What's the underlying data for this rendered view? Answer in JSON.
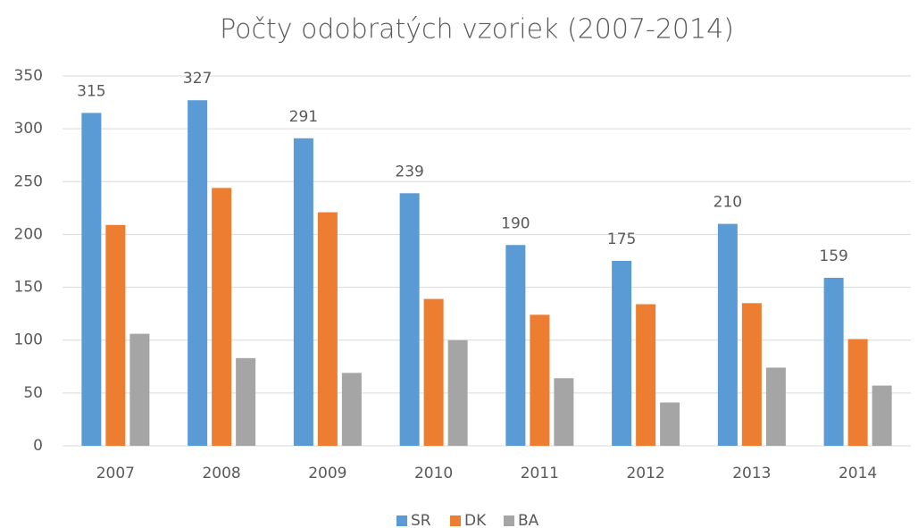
{
  "chart_data": {
    "type": "bar",
    "title": "Počty odobratých vzoriek (2007-2014)",
    "categories": [
      "2007",
      "2008",
      "2009",
      "2010",
      "2011",
      "2012",
      "2013",
      "2014"
    ],
    "series": [
      {
        "name": "SR",
        "color": "#5b9bd5",
        "values": [
          315,
          327,
          291,
          239,
          190,
          175,
          210,
          159
        ],
        "data_labels": true
      },
      {
        "name": "DK",
        "color": "#ed7d31",
        "values": [
          209,
          244,
          221,
          139,
          124,
          134,
          135,
          101
        ],
        "data_labels": false
      },
      {
        "name": "BA",
        "color": "#a5a5a5",
        "values": [
          106,
          83,
          69,
          100,
          64,
          41,
          74,
          57
        ],
        "data_labels": false
      }
    ],
    "ylim": [
      0,
      350
    ],
    "yticks": [
      0,
      50,
      100,
      150,
      200,
      250,
      300,
      350
    ],
    "grid": true,
    "legend": "bottom"
  }
}
